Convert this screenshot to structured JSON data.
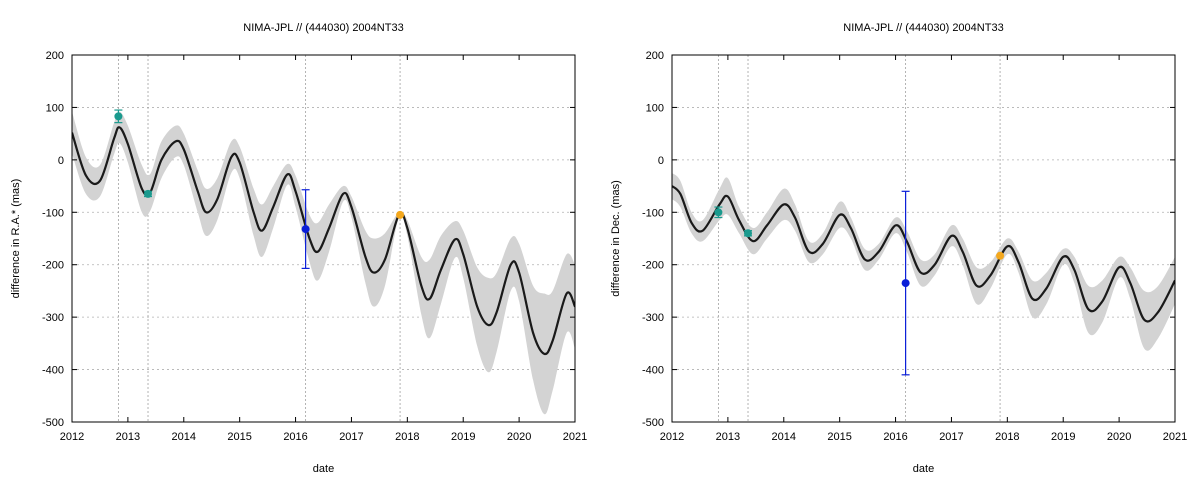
{
  "chart_data": [
    {
      "type": "line",
      "title": "NIMA-JPL // (444030) 2004NT33",
      "xlabel": "date",
      "ylabel": "difference in R.A.* (mas)",
      "xlim": [
        2012,
        2021
      ],
      "ylim": [
        -500,
        200
      ],
      "xticks": [
        2012,
        2013,
        2014,
        2015,
        2016,
        2017,
        2018,
        2019,
        2020,
        2021
      ],
      "yticks": [
        -500,
        -400,
        -300,
        -200,
        -100,
        0,
        100,
        200
      ],
      "grid": true,
      "vlines": [
        2012.83,
        2013.36,
        2016.18,
        2017.87
      ],
      "model": {
        "name": "",
        "color": "#1a1a1a",
        "band_color": "#d3d3d3",
        "x": [
          2012.0,
          2012.25,
          2012.5,
          2012.75,
          2012.85,
          2013.0,
          2013.25,
          2013.4,
          2013.6,
          2013.85,
          2014.0,
          2014.25,
          2014.4,
          2014.6,
          2014.85,
          2015.0,
          2015.25,
          2015.4,
          2015.6,
          2015.85,
          2016.0,
          2016.25,
          2016.4,
          2016.6,
          2016.85,
          2017.0,
          2017.25,
          2017.4,
          2017.6,
          2017.85,
          2018.0,
          2018.25,
          2018.4,
          2018.6,
          2018.85,
          2019.0,
          2019.25,
          2019.45,
          2019.6,
          2019.85,
          2020.0,
          2020.25,
          2020.45,
          2020.6,
          2020.85,
          2021.0
        ],
        "y": [
          52,
          -30,
          -40,
          40,
          62,
          30,
          -55,
          -62,
          0,
          35,
          20,
          -60,
          -100,
          -75,
          5,
          -5,
          -100,
          -135,
          -90,
          -28,
          -60,
          -150,
          -175,
          -130,
          -65,
          -90,
          -185,
          -215,
          -190,
          -105,
          -130,
          -240,
          -265,
          -210,
          -152,
          -180,
          -280,
          -315,
          -290,
          -200,
          -215,
          -330,
          -370,
          -345,
          -255,
          -280
        ],
        "band_half": [
          40,
          35,
          30,
          30,
          30,
          35,
          45,
          35,
          35,
          30,
          30,
          40,
          45,
          40,
          30,
          30,
          45,
          50,
          40,
          20,
          30,
          45,
          55,
          45,
          15,
          20,
          50,
          65,
          50,
          5,
          15,
          55,
          75,
          65,
          35,
          45,
          75,
          90,
          75,
          50,
          55,
          90,
          115,
          95,
          75,
          80
        ]
      },
      "observations": [
        {
          "x": 2012.83,
          "y": 83,
          "err": 12,
          "color": "#1a9a8e"
        },
        {
          "x": 2013.36,
          "y": -65,
          "err": 5,
          "color": "#1a9a8e"
        },
        {
          "x": 2016.18,
          "y": -132,
          "err": 75,
          "color": "#0a1ed8"
        },
        {
          "x": 2017.87,
          "y": -105,
          "err": 0,
          "color": "#f4a81d"
        }
      ]
    },
    {
      "type": "line",
      "title": "NIMA-JPL // (444030) 2004NT33",
      "xlabel": "date",
      "ylabel": "difference in Dec. (mas)",
      "xlim": [
        2012,
        2021
      ],
      "ylim": [
        -500,
        200
      ],
      "xticks": [
        2012,
        2013,
        2014,
        2015,
        2016,
        2017,
        2018,
        2019,
        2020,
        2021
      ],
      "yticks": [
        -500,
        -400,
        -300,
        -200,
        -100,
        0,
        100,
        200
      ],
      "grid": true,
      "vlines": [
        2012.83,
        2013.36,
        2016.18,
        2017.87
      ],
      "model": {
        "name": "",
        "color": "#1a1a1a",
        "band_color": "#d3d3d3",
        "x": [
          2012.0,
          2012.15,
          2012.35,
          2012.55,
          2012.85,
          2013.0,
          2013.2,
          2013.45,
          2013.7,
          2014.0,
          2014.2,
          2014.45,
          2014.7,
          2015.0,
          2015.2,
          2015.45,
          2015.7,
          2016.0,
          2016.2,
          2016.45,
          2016.7,
          2017.0,
          2017.2,
          2017.45,
          2017.7,
          2018.0,
          2018.2,
          2018.45,
          2018.7,
          2019.0,
          2019.2,
          2019.45,
          2019.7,
          2020.0,
          2020.2,
          2020.45,
          2020.7,
          2021.0
        ],
        "y": [
          -50,
          -65,
          -120,
          -135,
          -85,
          -70,
          -115,
          -155,
          -125,
          -85,
          -110,
          -175,
          -160,
          -105,
          -130,
          -190,
          -175,
          -125,
          -155,
          -215,
          -200,
          -145,
          -175,
          -240,
          -220,
          -165,
          -195,
          -265,
          -245,
          -185,
          -210,
          -285,
          -270,
          -205,
          -235,
          -305,
          -290,
          -230
        ],
        "band_half": [
          25,
          25,
          20,
          20,
          30,
          35,
          25,
          25,
          25,
          30,
          25,
          20,
          20,
          25,
          20,
          20,
          15,
          15,
          20,
          25,
          20,
          20,
          25,
          35,
          25,
          15,
          20,
          35,
          30,
          15,
          25,
          45,
          40,
          20,
          30,
          55,
          50,
          45
        ]
      },
      "observations": [
        {
          "x": 2012.83,
          "y": -100,
          "err": 10,
          "color": "#1a9a8e"
        },
        {
          "x": 2013.36,
          "y": -140,
          "err": 5,
          "color": "#1a9a8e"
        },
        {
          "x": 2016.18,
          "y": -235,
          "err": 175,
          "color": "#0a1ed8"
        },
        {
          "x": 2017.87,
          "y": -183,
          "err": 0,
          "color": "#f4a81d"
        }
      ]
    }
  ]
}
